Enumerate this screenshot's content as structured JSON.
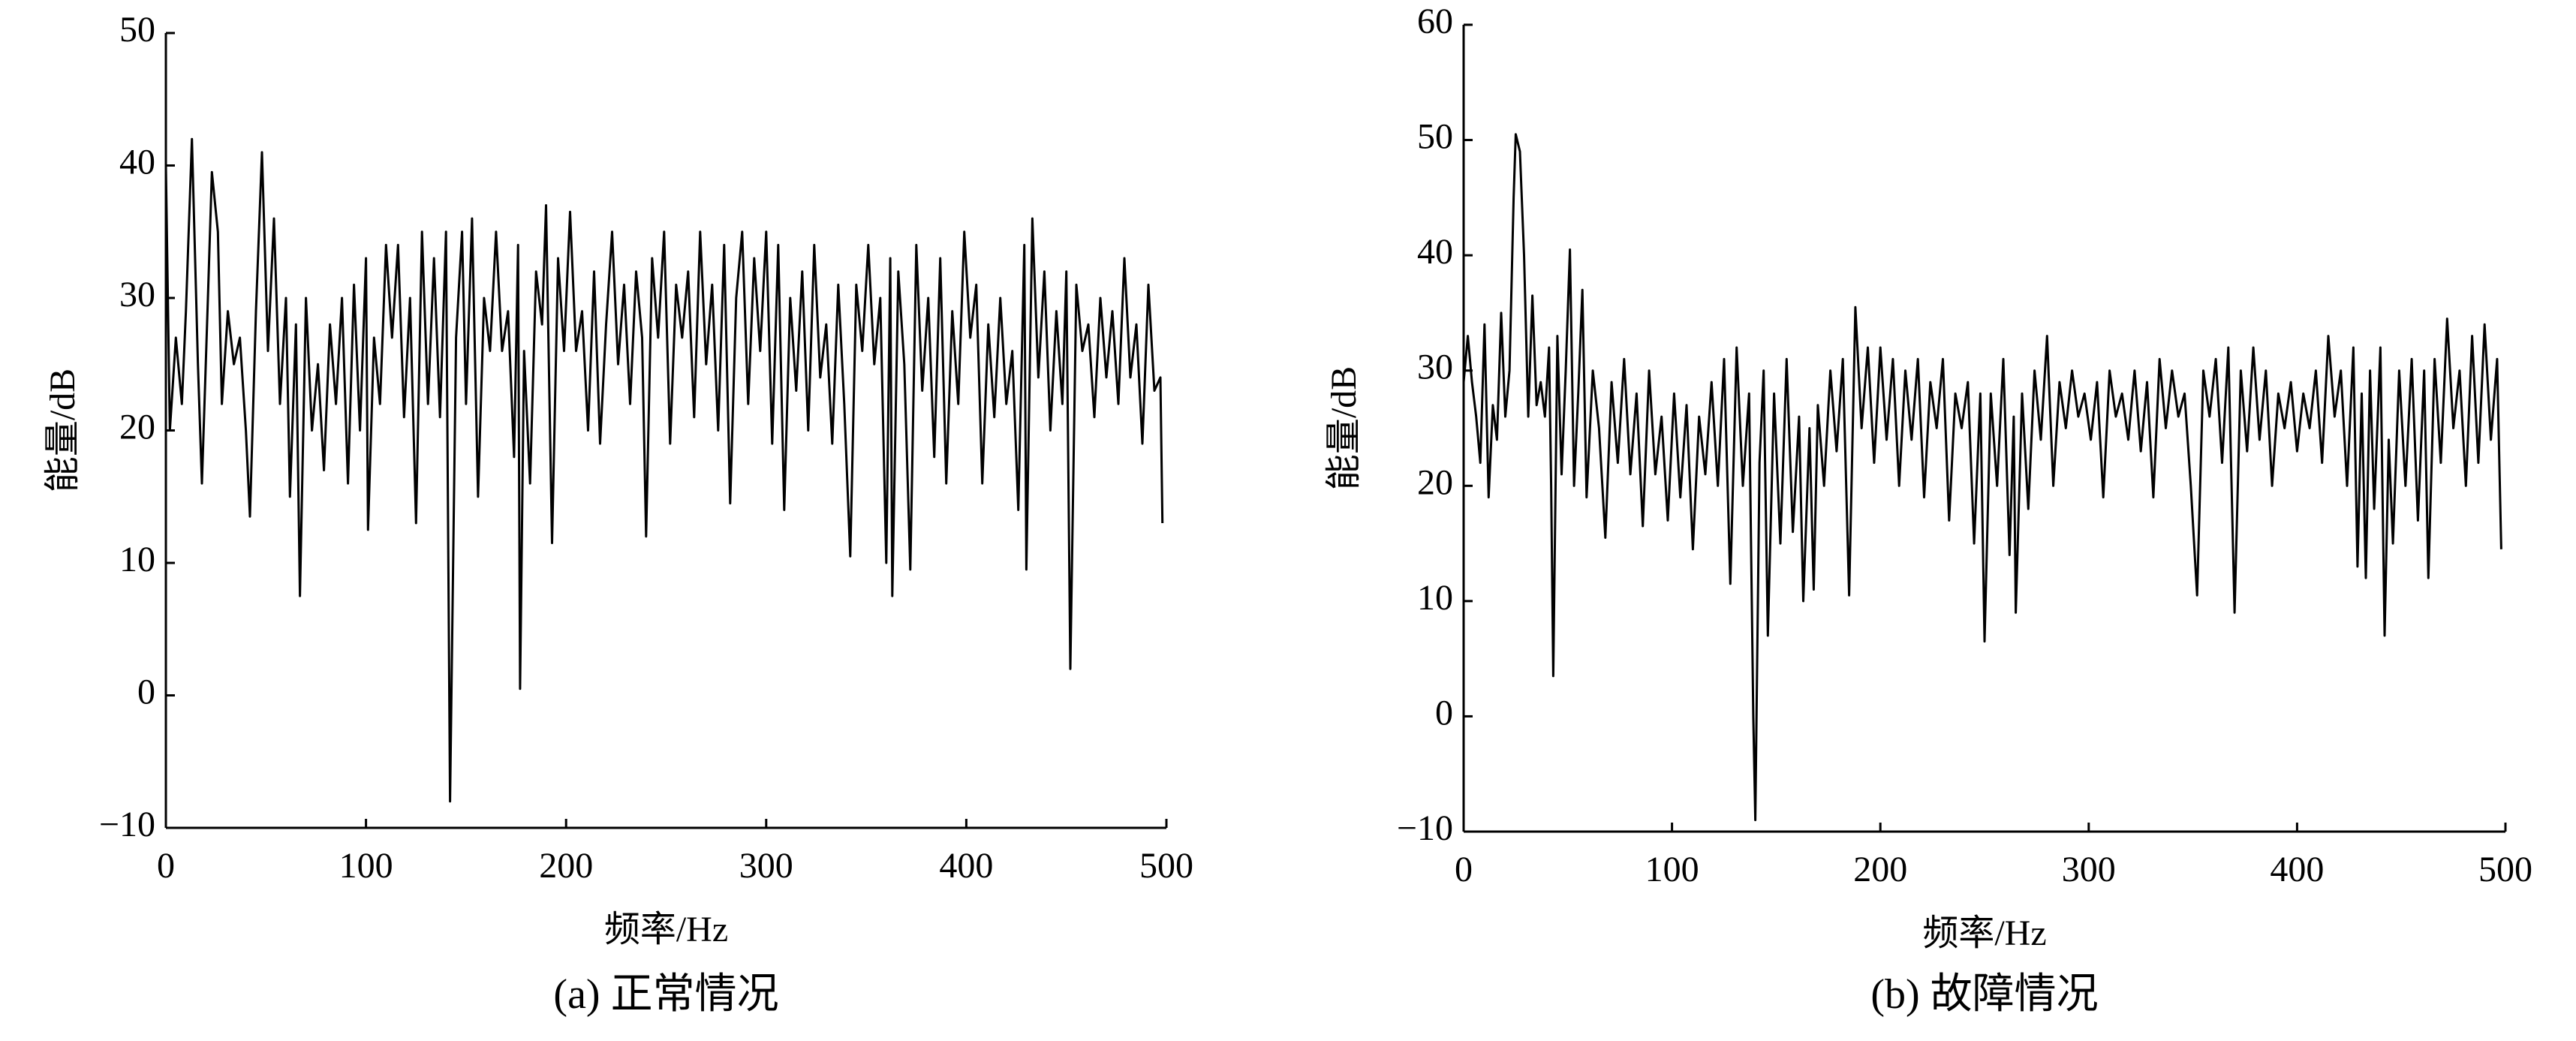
{
  "chart_data": [
    {
      "type": "line",
      "caption": "(a) 正常情况",
      "x_label": "频率/Hz",
      "y_label": "能量/dB",
      "color": "#000000",
      "xlim": [
        0,
        500
      ],
      "xticks": [
        0,
        100,
        200,
        300,
        400,
        500
      ],
      "ylim": [
        -10,
        50
      ],
      "yticks": [
        {
          "value": -10,
          "label": "−10"
        },
        0,
        10,
        20,
        30,
        40,
        50
      ],
      "x": [
        0,
        2,
        5,
        8,
        10,
        13,
        16,
        18,
        21,
        23,
        26,
        28,
        31,
        34,
        37,
        40,
        42,
        45,
        48,
        51,
        54,
        57,
        60,
        62,
        65,
        67,
        70,
        73,
        76,
        79,
        82,
        85,
        88,
        91,
        94,
        97,
        100,
        101,
        104,
        107,
        110,
        113,
        116,
        119,
        122,
        125,
        128,
        131,
        134,
        137,
        140,
        142,
        145,
        148,
        150,
        153,
        156,
        159,
        162,
        165,
        168,
        171,
        174,
        176,
        177,
        179,
        182,
        185,
        188,
        190,
        193,
        196,
        199,
        202,
        205,
        208,
        211,
        214,
        217,
        220,
        223,
        226,
        229,
        232,
        235,
        238,
        240,
        243,
        246,
        249,
        252,
        255,
        258,
        261,
        264,
        267,
        270,
        273,
        276,
        279,
        282,
        285,
        288,
        291,
        294,
        297,
        300,
        303,
        306,
        309,
        312,
        315,
        318,
        321,
        324,
        327,
        330,
        333,
        336,
        339,
        342,
        345,
        348,
        351,
        354,
        357,
        360,
        362,
        363,
        366,
        369,
        372,
        375,
        378,
        381,
        384,
        387,
        390,
        393,
        396,
        399,
        402,
        405,
        408,
        411,
        414,
        417,
        420,
        423,
        426,
        429,
        430,
        433,
        436,
        439,
        442,
        445,
        448,
        450,
        452,
        455,
        458,
        461,
        464,
        467,
        470,
        473,
        476,
        479,
        482,
        485,
        488,
        491,
        494,
        497,
        498
      ],
      "values": [
        40,
        20,
        27,
        22,
        29,
        42,
        25,
        16,
        30,
        39.5,
        35,
        22,
        29,
        25,
        27,
        20,
        13.5,
        29,
        41,
        26,
        36,
        22,
        30,
        15,
        28,
        7.5,
        30,
        20,
        25,
        17,
        28,
        22,
        30,
        16,
        31,
        20,
        33,
        12.5,
        27,
        22,
        34,
        27,
        34,
        21,
        30,
        13,
        35,
        22,
        33,
        21,
        35,
        -8,
        27,
        35,
        22,
        36,
        15,
        30,
        26,
        35,
        26,
        29,
        18,
        34,
        0.5,
        26,
        16,
        32,
        28,
        37,
        11.5,
        33,
        26,
        36.5,
        26,
        29,
        20,
        32,
        19,
        28,
        35,
        25,
        31,
        22,
        32,
        27,
        12,
        33,
        27,
        35,
        19,
        31,
        27,
        32,
        21,
        35,
        25,
        31,
        20,
        34,
        14.5,
        30,
        35,
        22,
        33,
        26,
        35,
        19,
        34,
        14,
        30,
        23,
        32,
        20,
        34,
        24,
        28,
        19,
        31,
        22,
        10.5,
        31,
        26,
        34,
        25,
        30,
        10,
        33,
        7.5,
        32,
        25,
        9.5,
        34,
        23,
        30,
        18,
        33,
        16,
        29,
        22,
        35,
        27,
        31,
        16,
        28,
        21,
        30,
        22,
        26,
        14,
        34,
        9.5,
        36,
        24,
        32,
        20,
        29,
        22,
        32,
        2,
        31,
        26,
        28,
        21,
        30,
        24,
        29,
        22,
        33,
        24,
        28,
        19,
        31,
        23,
        24,
        13
      ]
    },
    {
      "type": "line",
      "caption": "(b) 故障情况",
      "x_label": "频率/Hz",
      "y_label": "能量/dB",
      "color": "#000000",
      "xlim": [
        0,
        500
      ],
      "xticks": [
        0,
        100,
        200,
        300,
        400,
        500
      ],
      "ylim": [
        -10,
        60
      ],
      "yticks": [
        {
          "value": -10,
          "label": "−10"
        },
        0,
        10,
        20,
        30,
        40,
        50,
        60
      ],
      "x": [
        0,
        2,
        4,
        6,
        8,
        10,
        12,
        14,
        16,
        18,
        20,
        22,
        24,
        25,
        27,
        29,
        31,
        33,
        35,
        37,
        39,
        41,
        42,
        43,
        45,
        47,
        49,
        51,
        53,
        55,
        57,
        59,
        62,
        65,
        68,
        71,
        74,
        77,
        80,
        83,
        86,
        89,
        92,
        95,
        98,
        101,
        104,
        107,
        110,
        113,
        116,
        119,
        122,
        125,
        128,
        131,
        134,
        137,
        139,
        140,
        142,
        144,
        146,
        149,
        152,
        155,
        158,
        161,
        163,
        166,
        168,
        170,
        173,
        176,
        179,
        182,
        185,
        188,
        191,
        194,
        197,
        200,
        203,
        206,
        209,
        212,
        215,
        218,
        221,
        224,
        227,
        230,
        233,
        236,
        239,
        242,
        245,
        248,
        250,
        253,
        256,
        259,
        262,
        264,
        265,
        268,
        271,
        274,
        277,
        280,
        283,
        286,
        289,
        292,
        295,
        298,
        301,
        304,
        307,
        310,
        313,
        316,
        319,
        322,
        325,
        328,
        331,
        334,
        337,
        340,
        343,
        346,
        349,
        352,
        355,
        358,
        361,
        364,
        367,
        370,
        373,
        376,
        379,
        382,
        385,
        388,
        391,
        394,
        397,
        400,
        403,
        406,
        409,
        412,
        415,
        418,
        421,
        424,
        427,
        429,
        431,
        433,
        435,
        437,
        440,
        442,
        444,
        446,
        449,
        452,
        455,
        458,
        461,
        463,
        466,
        469,
        472,
        475,
        478,
        481,
        484,
        487,
        490,
        493,
        496,
        498
      ],
      "values": [
        29,
        33,
        29,
        26,
        22,
        34,
        19,
        27,
        24,
        35,
        26,
        30,
        45,
        50.5,
        49,
        40,
        26,
        36.5,
        27,
        29,
        26,
        32,
        20,
        3.5,
        33,
        21,
        30,
        40.5,
        20,
        28,
        37,
        19,
        30,
        25,
        15.5,
        29,
        22,
        31,
        21,
        28,
        16.5,
        30,
        21,
        26,
        17,
        28,
        19,
        27,
        14.5,
        26,
        21,
        29,
        20,
        31,
        11.5,
        32,
        20,
        28,
        0,
        -9,
        22,
        30,
        7,
        28,
        15,
        31,
        16,
        26,
        10,
        25,
        11,
        27,
        20,
        30,
        23,
        31,
        10.5,
        35.5,
        25,
        32,
        22,
        32,
        24,
        31,
        20,
        30,
        24,
        31,
        19,
        29,
        25,
        31,
        17,
        28,
        25,
        29,
        15,
        28,
        6.5,
        28,
        20,
        31,
        14,
        26,
        9,
        28,
        18,
        30,
        24,
        33,
        20,
        29,
        25,
        30,
        26,
        28,
        24,
        29,
        19,
        30,
        26,
        28,
        24,
        30,
        23,
        29,
        19,
        31,
        25,
        30,
        26,
        28,
        20,
        10.5,
        30,
        26,
        31,
        22,
        32,
        9,
        30,
        23,
        32,
        24,
        30,
        20,
        28,
        25,
        29,
        23,
        28,
        25,
        30,
        22,
        33,
        26,
        30,
        20,
        32,
        13,
        28,
        12,
        30,
        18,
        32,
        7,
        24,
        15,
        30,
        20,
        31,
        17,
        30,
        12,
        31,
        22,
        34.5,
        25,
        30,
        20,
        33,
        22,
        34,
        24,
        31,
        14.5
      ]
    }
  ]
}
